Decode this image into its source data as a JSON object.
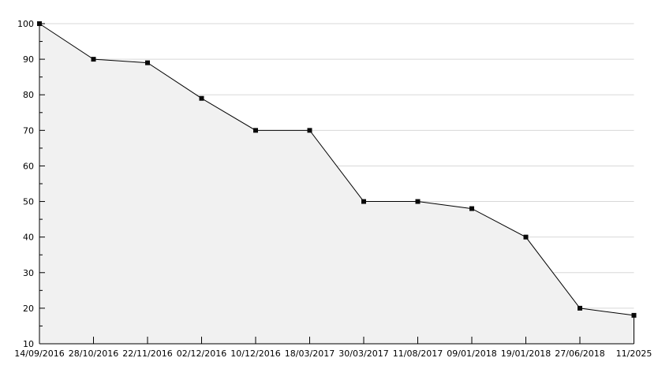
{
  "chart_data": {
    "type": "area",
    "categories": [
      "14/09/2016",
      "28/10/2016",
      "22/11/2016",
      "02/12/2016",
      "10/12/2016",
      "18/03/2017",
      "30/03/2017",
      "11/08/2017",
      "09/01/2018",
      "19/01/2018",
      "27/06/2018",
      "11/2025"
    ],
    "values": [
      100,
      90,
      89,
      79,
      70,
      70,
      50,
      50,
      48,
      40,
      20,
      18
    ],
    "title": "",
    "xlabel": "",
    "ylabel": "",
    "ylim": [
      10,
      100
    ],
    "yticks": [
      10,
      20,
      30,
      40,
      50,
      60,
      70,
      80,
      90,
      100
    ],
    "minor_ytick_step": 5,
    "grid": true,
    "legend": "none",
    "marker": "square",
    "colors": {
      "line": "#000000",
      "marker": "#0a0a0a",
      "fill": "#f1f1f1",
      "grid": "#d8d8d8",
      "axis": "#000000",
      "text": "#000000",
      "background": "#ffffff"
    }
  }
}
